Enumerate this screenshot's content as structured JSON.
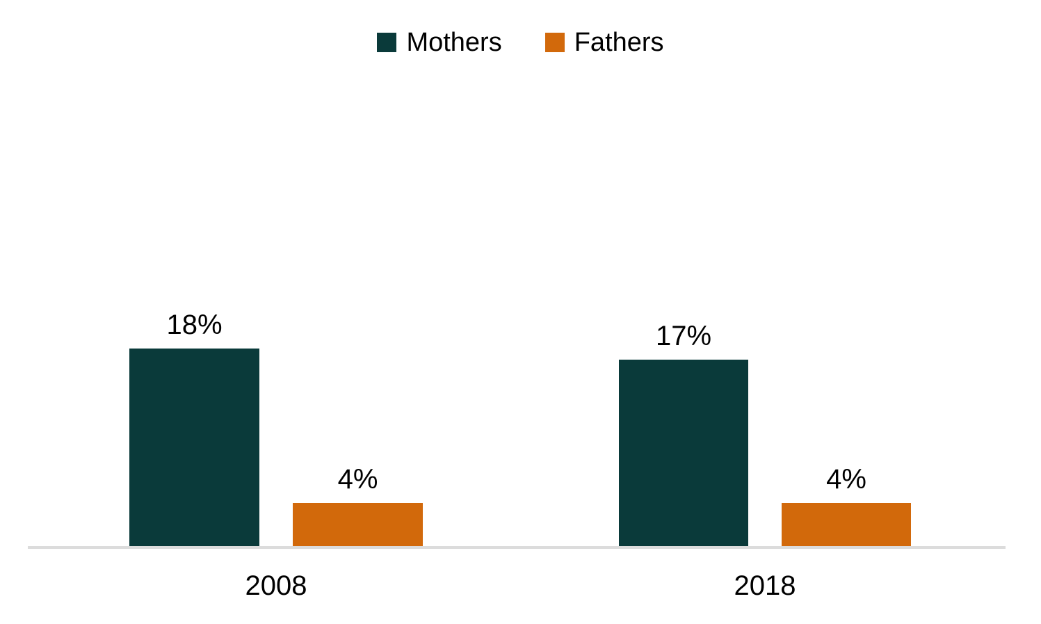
{
  "chart_data": {
    "type": "bar",
    "categories": [
      "2008",
      "2018"
    ],
    "series": [
      {
        "name": "Mothers",
        "color": "#0a3a3a",
        "values": [
          18,
          17
        ],
        "value_labels": [
          "18%",
          "17%"
        ]
      },
      {
        "name": "Fathers",
        "color": "#d2690b",
        "values": [
          4,
          4
        ],
        "value_labels": [
          "4%",
          "4%"
        ]
      }
    ],
    "title": "",
    "xlabel": "",
    "ylabel": "",
    "ylim": [
      0,
      20
    ],
    "grid": false,
    "legend_position": "top-center",
    "value_label_format": "percent",
    "baseline_color": "#dcdcdc",
    "background_color": "#ffffff",
    "text_color": "#000000"
  }
}
